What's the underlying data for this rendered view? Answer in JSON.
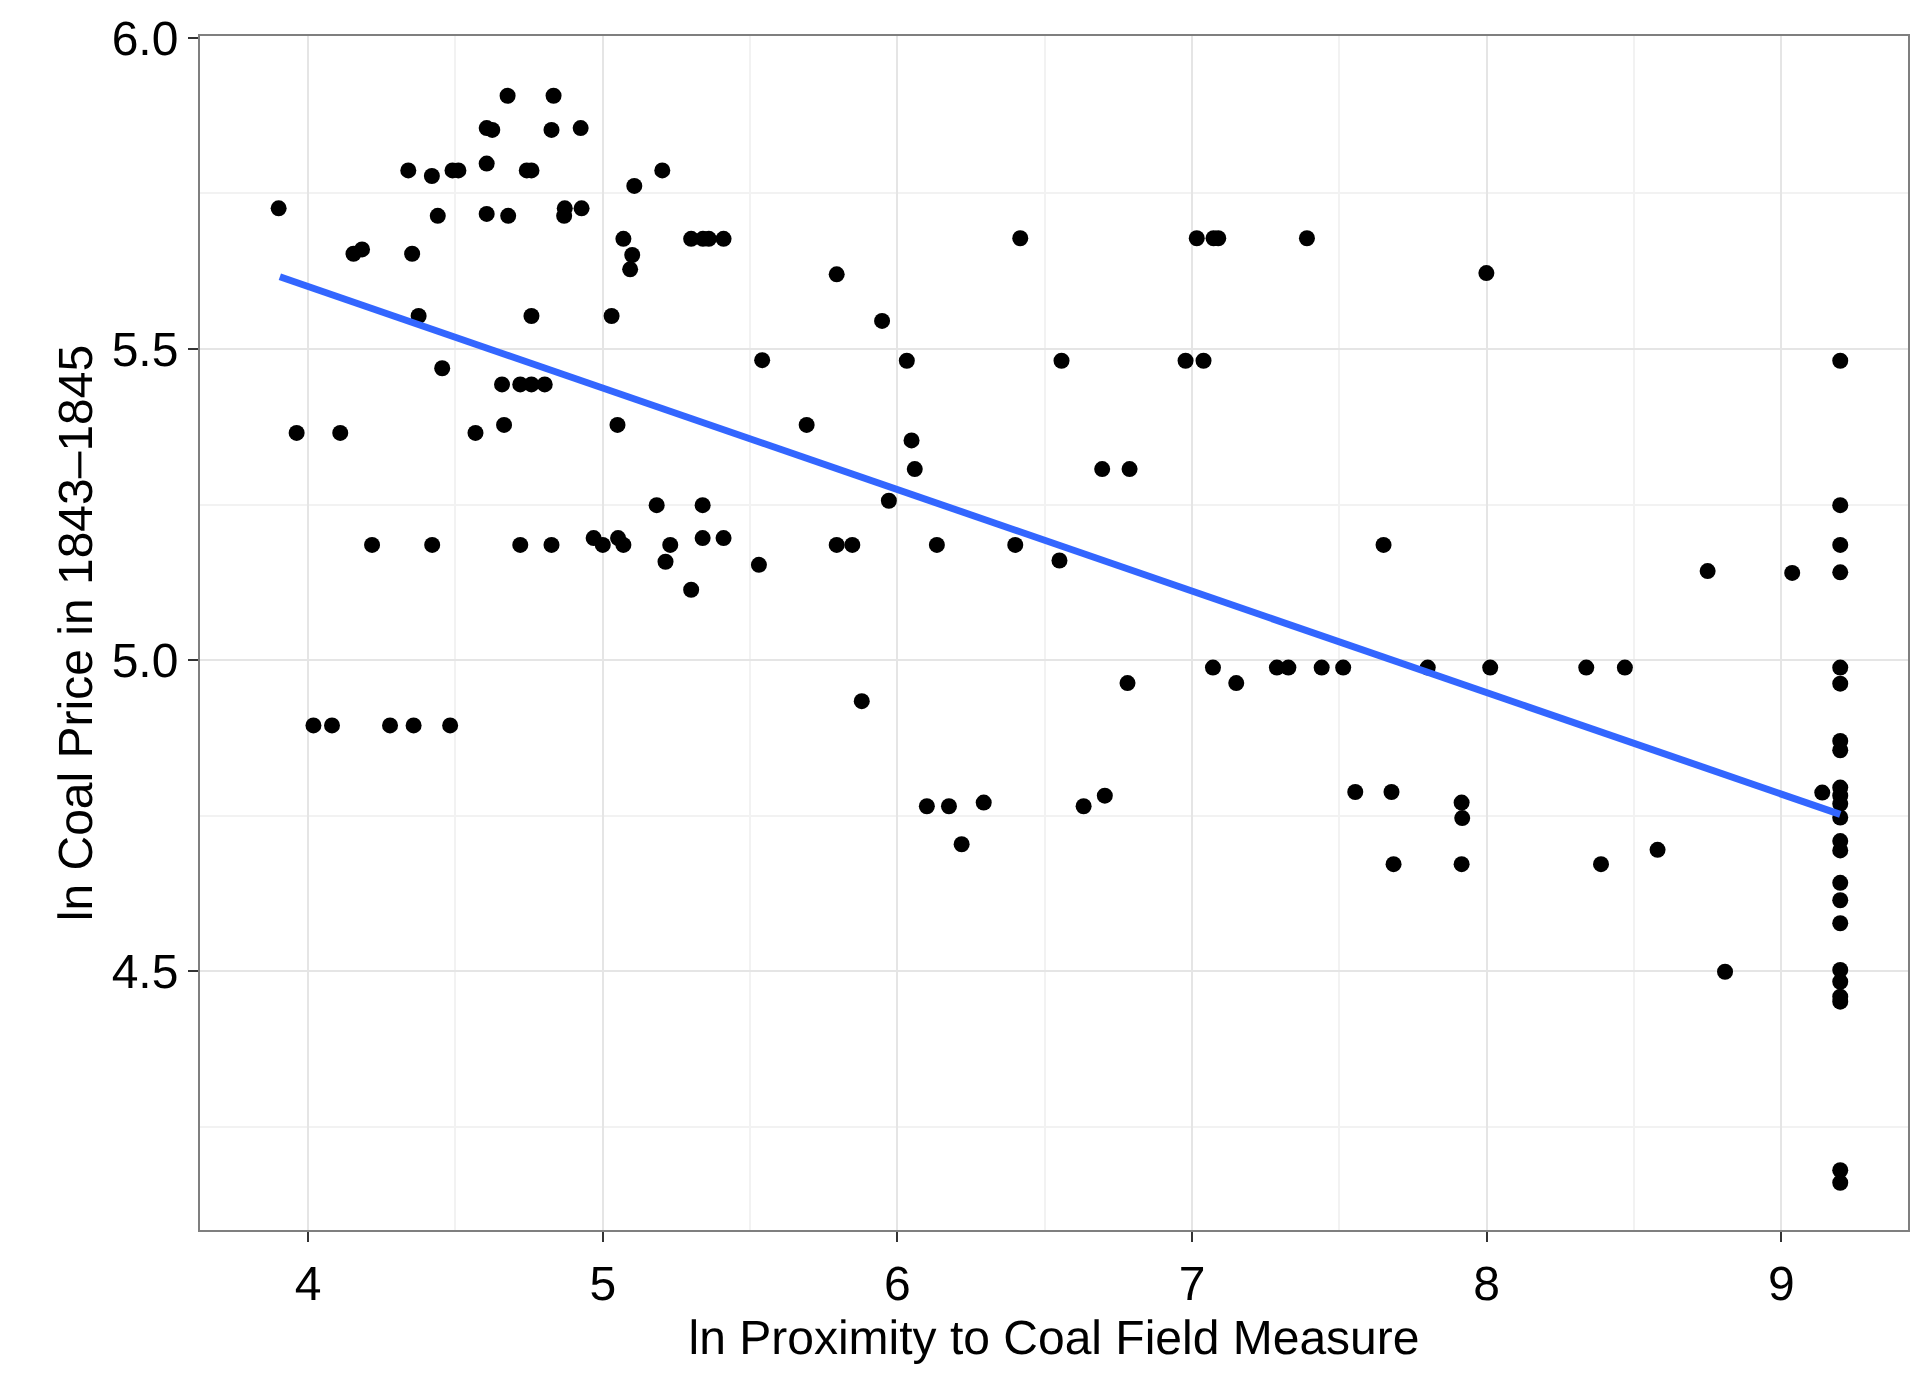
{
  "chart_data": {
    "type": "scatter",
    "xlabel": "ln Proximity to Coal Field Measure",
    "ylabel": "ln Coal Price in 1843–1845",
    "xlim": [
      3.633,
      9.43
    ],
    "ylim": [
      4.084,
      6.003
    ],
    "xticks": [
      4,
      5,
      6,
      7,
      8,
      9
    ],
    "yticks": [
      {
        "value": 4.5,
        "label": "4.5"
      },
      {
        "value": 5,
        "label": "5.0"
      },
      {
        "value": 5.5,
        "label": "5.5"
      },
      {
        "value": 6,
        "label": "6.0"
      }
    ],
    "grid": true,
    "series": [
      {
        "color": "#000000",
        "marker": "circle",
        "x": [
          3.9,
          4.154,
          4.183,
          4.34,
          4.42,
          4.49,
          4.51,
          4.353,
          4.44,
          4.606,
          4.625,
          4.677,
          4.833,
          4.826,
          4.925,
          4.606,
          4.606,
          4.679,
          4.742,
          4.758,
          4.871,
          4.869,
          4.928,
          5.107,
          5.202,
          5.07,
          5.1,
          5.093,
          5.3,
          5.34,
          5.36,
          5.41,
          5.794,
          4.375,
          4.758,
          5.03,
          4.455,
          4.658,
          4.72,
          4.758,
          4.803,
          5.541,
          4.665,
          3.961,
          4.109,
          4.568,
          5.05,
          5.692,
          5.183,
          5.339,
          4.217,
          4.421,
          4.72,
          4.826,
          4.969,
          5.0,
          5.052,
          5.07,
          5.229,
          5.213,
          5.339,
          5.41,
          5.3,
          5.53,
          5.794,
          4.018,
          4.081,
          4.278,
          4.358,
          4.482,
          6.417,
          7.016,
          7.073,
          7.089,
          7.39,
          7.999,
          5.948,
          6.032,
          6.557,
          6.978,
          7.039,
          6.048,
          6.059,
          6.695,
          6.788,
          5.971,
          5.847,
          6.134,
          6.4,
          6.55,
          7.65,
          5.879,
          6.781,
          7.071,
          7.15,
          7.288,
          7.327,
          7.44,
          7.513,
          7.8,
          6.1,
          6.175,
          6.293,
          6.218,
          6.632,
          6.704,
          7.554,
          7.677,
          7.684,
          7.915,
          7.917,
          7.915,
          9.2,
          9.2,
          9.2,
          8.75,
          9.037,
          9.2,
          8.012,
          8.338,
          8.469,
          9.2,
          9.2,
          9.2,
          9.2,
          9.139,
          9.2,
          9.2,
          9.2,
          9.2,
          8.388,
          8.58,
          9.2,
          9.2,
          9.2,
          9.2,
          9.2,
          8.809,
          9.2,
          9.2,
          9.2,
          9.2,
          9.2,
          9.2
        ],
        "values": [
          5.726,
          5.653,
          5.66,
          5.787,
          5.778,
          5.787,
          5.787,
          5.653,
          5.714,
          5.855,
          5.852,
          5.907,
          5.907,
          5.852,
          5.855,
          5.798,
          5.717,
          5.714,
          5.787,
          5.787,
          5.726,
          5.714,
          5.726,
          5.762,
          5.787,
          5.677,
          5.651,
          5.628,
          5.677,
          5.677,
          5.677,
          5.677,
          5.62,
          5.553,
          5.553,
          5.553,
          5.469,
          5.443,
          5.443,
          5.443,
          5.443,
          5.482,
          5.378,
          5.365,
          5.365,
          5.365,
          5.378,
          5.378,
          5.249,
          5.249,
          5.185,
          5.185,
          5.185,
          5.185,
          5.196,
          5.185,
          5.196,
          5.185,
          5.185,
          5.158,
          5.196,
          5.196,
          5.113,
          5.153,
          5.185,
          4.895,
          4.895,
          4.895,
          4.895,
          4.895,
          5.678,
          5.678,
          5.678,
          5.678,
          5.678,
          5.622,
          5.545,
          5.481,
          5.481,
          5.481,
          5.481,
          5.353,
          5.307,
          5.307,
          5.307,
          5.256,
          5.185,
          5.185,
          5.185,
          5.16,
          5.185,
          4.934,
          4.963,
          4.988,
          4.963,
          4.988,
          4.988,
          4.988,
          4.988,
          4.988,
          4.765,
          4.765,
          4.771,
          4.704,
          4.765,
          4.782,
          4.788,
          4.788,
          4.672,
          4.771,
          4.746,
          4.672,
          5.481,
          5.249,
          5.185,
          5.143,
          5.14,
          5.141,
          4.988,
          4.988,
          4.988,
          4.988,
          4.962,
          4.87,
          4.855,
          4.787,
          4.795,
          4.782,
          4.769,
          4.747,
          4.672,
          4.695,
          4.709,
          4.694,
          4.642,
          4.614,
          4.577,
          4.499,
          4.502,
          4.483,
          4.459,
          4.451,
          4.18,
          4.16
        ]
      },
      {
        "type": "line",
        "color": "#3366ff",
        "marker": "none",
        "line_style": "solid",
        "x": [
          3.904,
          9.2
        ],
        "values": [
          5.616,
          4.752
        ]
      }
    ]
  }
}
